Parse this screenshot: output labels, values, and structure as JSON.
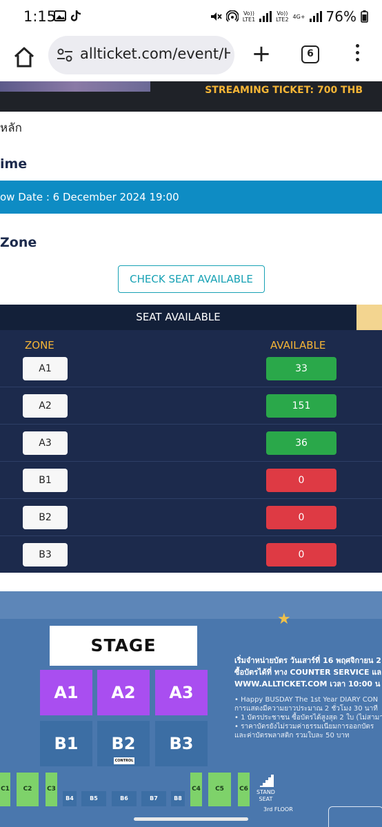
{
  "status_bar": {
    "time": "1:15",
    "net1_top": "Vo))",
    "net1_bottom": "LTE1",
    "net2_top": "Vo))",
    "net2_bottom": "LTE2",
    "net_type": "4G+",
    "battery": "76%"
  },
  "browser": {
    "url": "allticket.com/event/H",
    "tab_count": "6"
  },
  "page": {
    "streaming": "STREAMING TICKET: 700 THB",
    "thai_link": "หลัก",
    "time_heading": "ime",
    "show_date": "ow Date : 6 December 2024 19:00",
    "zone_heading": "Zone",
    "check_button": "CHECK SEAT AVAILABLE"
  },
  "seat_table": {
    "header": "SEAT AVAILABLE",
    "col_zone": "ZONE",
    "col_available": "AVAILABLE",
    "rows": [
      {
        "zone": "A1",
        "available": "33",
        "status_color": "#2aa84a"
      },
      {
        "zone": "A2",
        "available": "151",
        "status_color": "#2aa84a"
      },
      {
        "zone": "A3",
        "available": "36",
        "status_color": "#2aa84a"
      },
      {
        "zone": "B1",
        "available": "0",
        "status_color": "#de3a44"
      },
      {
        "zone": "B2",
        "available": "0",
        "status_color": "#de3a44"
      },
      {
        "zone": "B3",
        "available": "0",
        "status_color": "#de3a44"
      }
    ]
  },
  "seat_map": {
    "stage": "STAGE",
    "blocks_a": [
      "A1",
      "A2",
      "A3"
    ],
    "blocks_b": [
      "B1",
      "B2",
      "B3"
    ],
    "control": "CONTROL",
    "c_blocks": [
      "C1",
      "C2",
      "C3",
      "C4",
      "C5",
      "C6"
    ],
    "b_small": [
      "B4",
      "B5",
      "B6",
      "B7",
      "B8"
    ],
    "stand_line1": "STAND",
    "stand_line2": "SEAT",
    "floor": "3rd FLOOR",
    "info_line1": "เริ่มจำหน่ายบัตร วันเสาร์ที่ 16 พฤศจิกายน 2",
    "info_line2": "ซื้อบัตรได้ที่ ทาง COUNTER SERVICE แล",
    "info_line3": "WWW.ALLTICKET.COM เวลา 10:00 น",
    "bullet1": "• Happy BUSDAY The 1st Year DIARY CON",
    "bullet1b": "  การแสดงมีความยาวประมาณ 2 ชั่วโมง 30 นาที",
    "bullet2": "• 1 บัตรประชาชน ซื้อบัตรได้สูงสุด 2 ใบ (ไม่สามาร",
    "bullet3": "• ราคาบัตรยังไม่รวมค่าธรรมเนียมการออกบัตร",
    "bullet3b": "  และค่าบัตรพลาสติก รวมใบละ 50 บาท"
  },
  "colors": {
    "navy": "#1c2a4c",
    "blue_bar": "#0e8cc4",
    "gold": "#f5b536",
    "green": "#2aa84a",
    "red": "#de3a44",
    "zone_a_purple": "#a94ef0",
    "zone_b_blue": "#3c6ea4",
    "zone_c_green": "#7ed26a"
  }
}
